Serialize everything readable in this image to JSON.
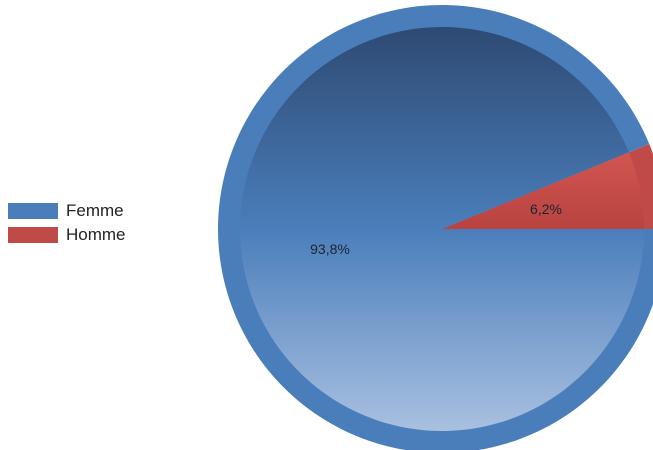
{
  "chart_data": {
    "type": "pie",
    "title": "",
    "slices": [
      {
        "name": "Femme",
        "value": 93.8,
        "label": "93,8%",
        "color": "#4a7ebb"
      },
      {
        "name": "Homme",
        "value": 6.2,
        "label": "6,2%",
        "color": "#be4b48"
      }
    ],
    "legend_position": "left"
  }
}
